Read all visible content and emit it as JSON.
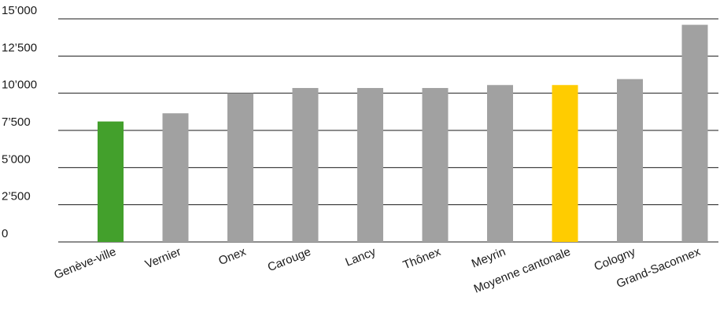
{
  "chart_data": {
    "type": "bar",
    "title": "",
    "xlabel": "",
    "ylabel": "",
    "ylim": [
      0,
      15000
    ],
    "y_ticks": [
      0,
      2500,
      5000,
      7500,
      10000,
      12500,
      15000
    ],
    "y_tick_labels": [
      "0",
      "2’500",
      "5’000",
      "7’500",
      "10’000",
      "12’500",
      "15’000"
    ],
    "grid": true,
    "legend": "none",
    "categories": [
      "Genève-ville",
      "Vernier",
      "Onex",
      "Carouge",
      "Lancy",
      "Thônex",
      "Meyrin",
      "Moyenne cantonale",
      "Cologny",
      "Grand-Saconnex"
    ],
    "values": [
      8100,
      8650,
      10000,
      10350,
      10350,
      10350,
      10550,
      10550,
      10950,
      14600
    ],
    "bar_colors": [
      "#43a02c",
      "#a1a1a1",
      "#a1a1a1",
      "#a1a1a1",
      "#a1a1a1",
      "#a1a1a1",
      "#a1a1a1",
      "#ffcc00",
      "#a1a1a1",
      "#a1a1a1"
    ]
  }
}
